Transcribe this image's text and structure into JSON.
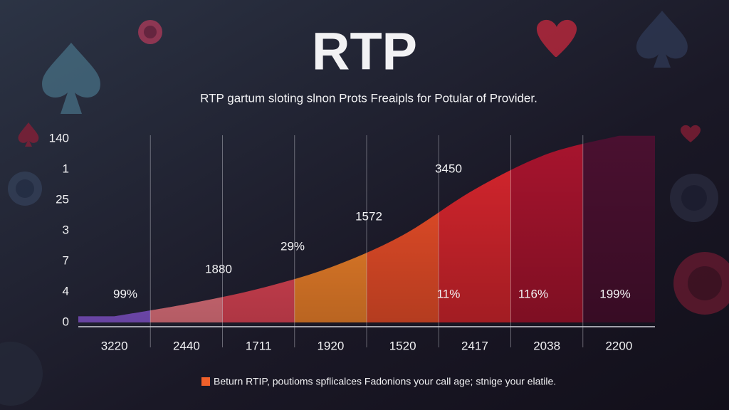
{
  "chart_data": {
    "type": "area",
    "title": "RTP",
    "subtitle": "RTP gartum sloting slnon Prots Freaipls for Potular of Provider.",
    "categories": [
      "3220",
      "2440",
      "1711",
      "1920",
      "1520",
      "2417",
      "2038",
      "2200"
    ],
    "values": [
      0.2,
      0.6,
      1.1,
      1.8,
      2.85,
      4.35,
      5.5,
      6.1
    ],
    "band_colors": [
      "#8a5ad8",
      "#f07a86",
      "#e8485a",
      "#f7862c",
      "#f0502a",
      "#d8262e",
      "#a8142e",
      "#4a1030"
    ],
    "annotations": [
      "99%",
      "1880",
      "29%",
      "1572",
      "3450",
      "11%",
      "116%",
      "199%"
    ],
    "ylim": [
      0,
      6
    ],
    "yticks": [
      {
        "value": 0,
        "label": "0"
      },
      {
        "value": 1,
        "label": "4"
      },
      {
        "value": 2,
        "label": "7"
      },
      {
        "value": 3,
        "label": "3"
      },
      {
        "value": 4,
        "label": "25"
      },
      {
        "value": 5,
        "label": "1"
      },
      {
        "value": 6,
        "label": "140"
      }
    ],
    "legend": {
      "label": "Beturn RTIP, poutioms spflicalces Fadonions your call age; stnige your elatile.",
      "color": "#f0602a"
    }
  }
}
